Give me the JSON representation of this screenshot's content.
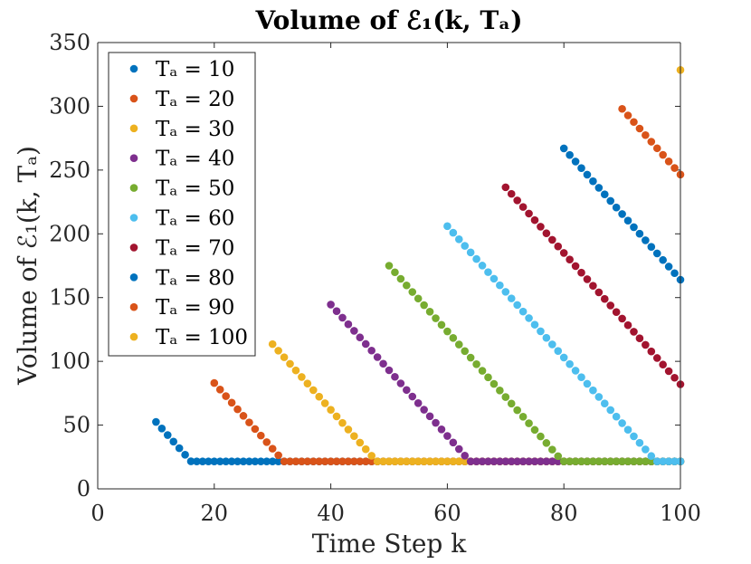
{
  "chart_data": {
    "type": "scatter",
    "title": "Volume of ℰ₁(k, Tₐ)",
    "xlabel": "Time Step k",
    "ylabel": "Volume of ℰ₁(k, Tₐ)",
    "xlim": [
      0,
      100
    ],
    "ylim": [
      0,
      350
    ],
    "xticks": [
      0,
      20,
      40,
      60,
      80,
      100
    ],
    "yticks": [
      0,
      50,
      100,
      150,
      200,
      250,
      300,
      350
    ],
    "grid": false,
    "legend_position": "top-left",
    "floor_value": 21.5,
    "series": [
      {
        "name": "Tₐ = 10",
        "color": "#0072BD",
        "start_k": 10,
        "start_value": 52.5,
        "slope": -5.15,
        "end_k": 100
      },
      {
        "name": "Tₐ = 20",
        "color": "#D95319",
        "start_k": 20,
        "start_value": 83,
        "slope": -5.15,
        "end_k": 100
      },
      {
        "name": "Tₐ = 30",
        "color": "#EDB120",
        "start_k": 30,
        "start_value": 113.5,
        "slope": -5.15,
        "end_k": 100
      },
      {
        "name": "Tₐ = 40",
        "color": "#7E2F8E",
        "start_k": 40,
        "start_value": 144.5,
        "slope": -5.15,
        "end_k": 100
      },
      {
        "name": "Tₐ = 50",
        "color": "#77AC30",
        "start_k": 50,
        "start_value": 175,
        "slope": -5.15,
        "end_k": 100
      },
      {
        "name": "Tₐ = 60",
        "color": "#4DBEEE",
        "start_k": 60,
        "start_value": 206,
        "slope": -5.15,
        "end_k": 100
      },
      {
        "name": "Tₐ = 70",
        "color": "#A2142F",
        "start_k": 70,
        "start_value": 236.5,
        "slope": -5.15,
        "end_k": 100
      },
      {
        "name": "Tₐ = 80",
        "color": "#0072BD",
        "start_k": 80,
        "start_value": 267,
        "slope": -5.15,
        "end_k": 100
      },
      {
        "name": "Tₐ = 90",
        "color": "#D95319",
        "start_k": 90,
        "start_value": 298,
        "slope": -5.15,
        "end_k": 100
      },
      {
        "name": "Tₐ = 100",
        "color": "#EDB120",
        "start_k": 100,
        "start_value": 328.5,
        "slope": -5.15,
        "end_k": 100
      }
    ]
  }
}
